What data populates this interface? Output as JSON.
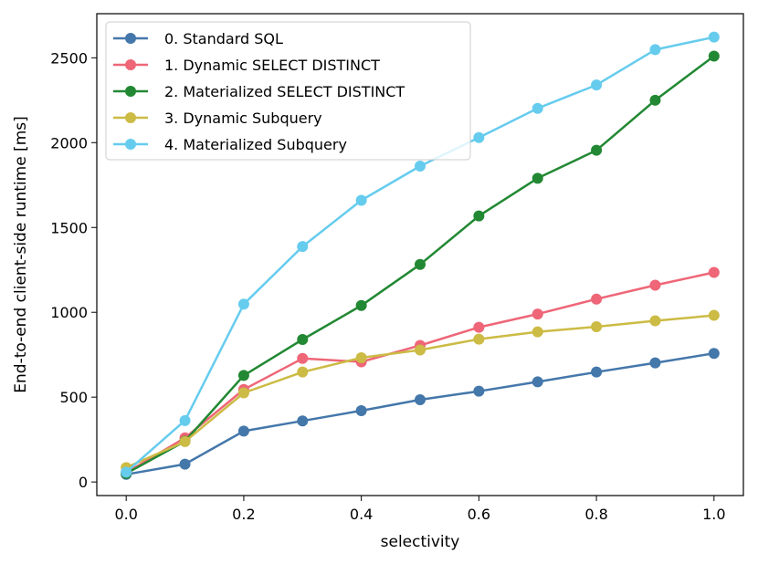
{
  "chart_data": {
    "type": "line",
    "title": "",
    "xlabel": "selectivity",
    "ylabel": "End-to-end client-side runtime [ms]",
    "xlim": [
      -0.05,
      1.05
    ],
    "ylim": [
      -80,
      2760
    ],
    "x": [
      0.0,
      0.1,
      0.2,
      0.3,
      0.4,
      0.5,
      0.6,
      0.7,
      0.8,
      0.9,
      1.0
    ],
    "x_ticks": [
      0.0,
      0.2,
      0.4,
      0.6,
      0.8,
      1.0
    ],
    "x_tick_labels": [
      "0.0",
      "0.2",
      "0.4",
      "0.6",
      "0.8",
      "1.0"
    ],
    "y_ticks": [
      0,
      500,
      1000,
      1500,
      2000,
      2500
    ],
    "y_tick_labels": [
      "0",
      "500",
      "1000",
      "1500",
      "2000",
      "2500"
    ],
    "grid": false,
    "legend_position": "top-left",
    "series": [
      {
        "name": "0. Standard SQL",
        "color": "#4477aa",
        "values": [
          45,
          105,
          300,
          360,
          420,
          485,
          535,
          590,
          648,
          702,
          758
        ]
      },
      {
        "name": "1. Dynamic SELECT DISTINCT",
        "color": "#ee6677",
        "values": [
          55,
          260,
          545,
          728,
          708,
          805,
          912,
          990,
          1078,
          1160,
          1235
        ]
      },
      {
        "name": "2. Materialized SELECT DISTINCT",
        "color": "#228833",
        "values": [
          50,
          240,
          628,
          840,
          1040,
          1282,
          1568,
          1790,
          1955,
          2250,
          2510
        ]
      },
      {
        "name": "3. Dynamic Subquery",
        "color": "#ccbb44",
        "values": [
          85,
          238,
          525,
          648,
          732,
          778,
          842,
          885,
          915,
          950,
          982
        ]
      },
      {
        "name": "4. Materialized Subquery",
        "color": "#66ccee",
        "values": [
          58,
          362,
          1048,
          1388,
          1660,
          1862,
          2030,
          2202,
          2340,
          2548,
          2622
        ]
      }
    ]
  }
}
